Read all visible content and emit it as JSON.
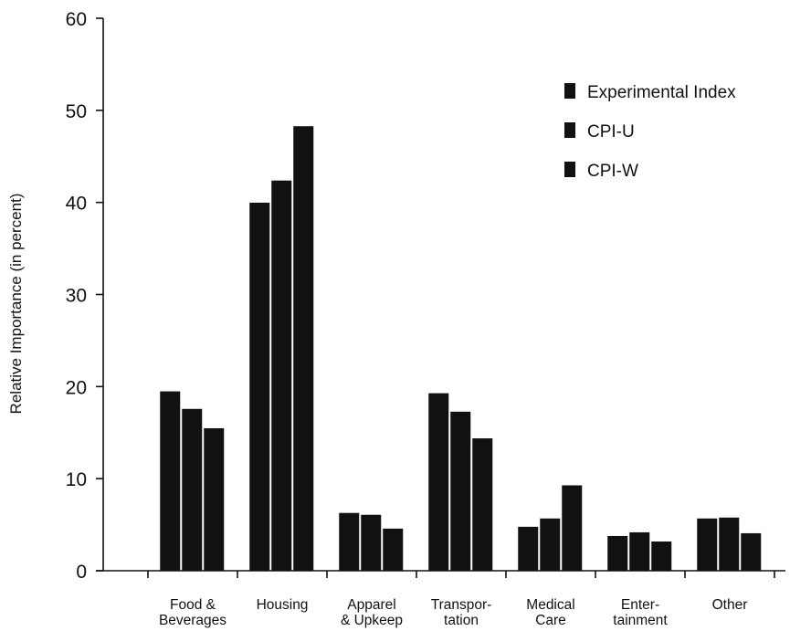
{
  "chart_data": {
    "type": "bar",
    "title": "",
    "xlabel": "",
    "ylabel": "Relative Importance (in percent)",
    "ylim": [
      0,
      60
    ],
    "yticks": [
      0,
      10,
      20,
      30,
      40,
      50,
      60
    ],
    "categories": [
      [
        "Food &",
        "Beverages"
      ],
      [
        "Housing"
      ],
      [
        "Apparel",
        "& Upkeep"
      ],
      [
        "Transpor-",
        "tation"
      ],
      [
        "Medical",
        "Care"
      ],
      [
        "Enter-",
        "tainment"
      ],
      [
        "Other"
      ]
    ],
    "series": [
      {
        "name": "Experimental Index",
        "values": [
          19.5,
          40.0,
          6.3,
          19.3,
          4.8,
          3.8,
          5.7
        ]
      },
      {
        "name": "CPI-U",
        "values": [
          17.6,
          42.4,
          6.1,
          17.3,
          5.7,
          4.2,
          5.8
        ]
      },
      {
        "name": "CPI-W",
        "values": [
          15.5,
          48.3,
          4.6,
          14.4,
          9.3,
          3.2,
          4.1
        ]
      }
    ],
    "bar_color": "#111111",
    "grid": false,
    "legend_position": "top-right"
  }
}
